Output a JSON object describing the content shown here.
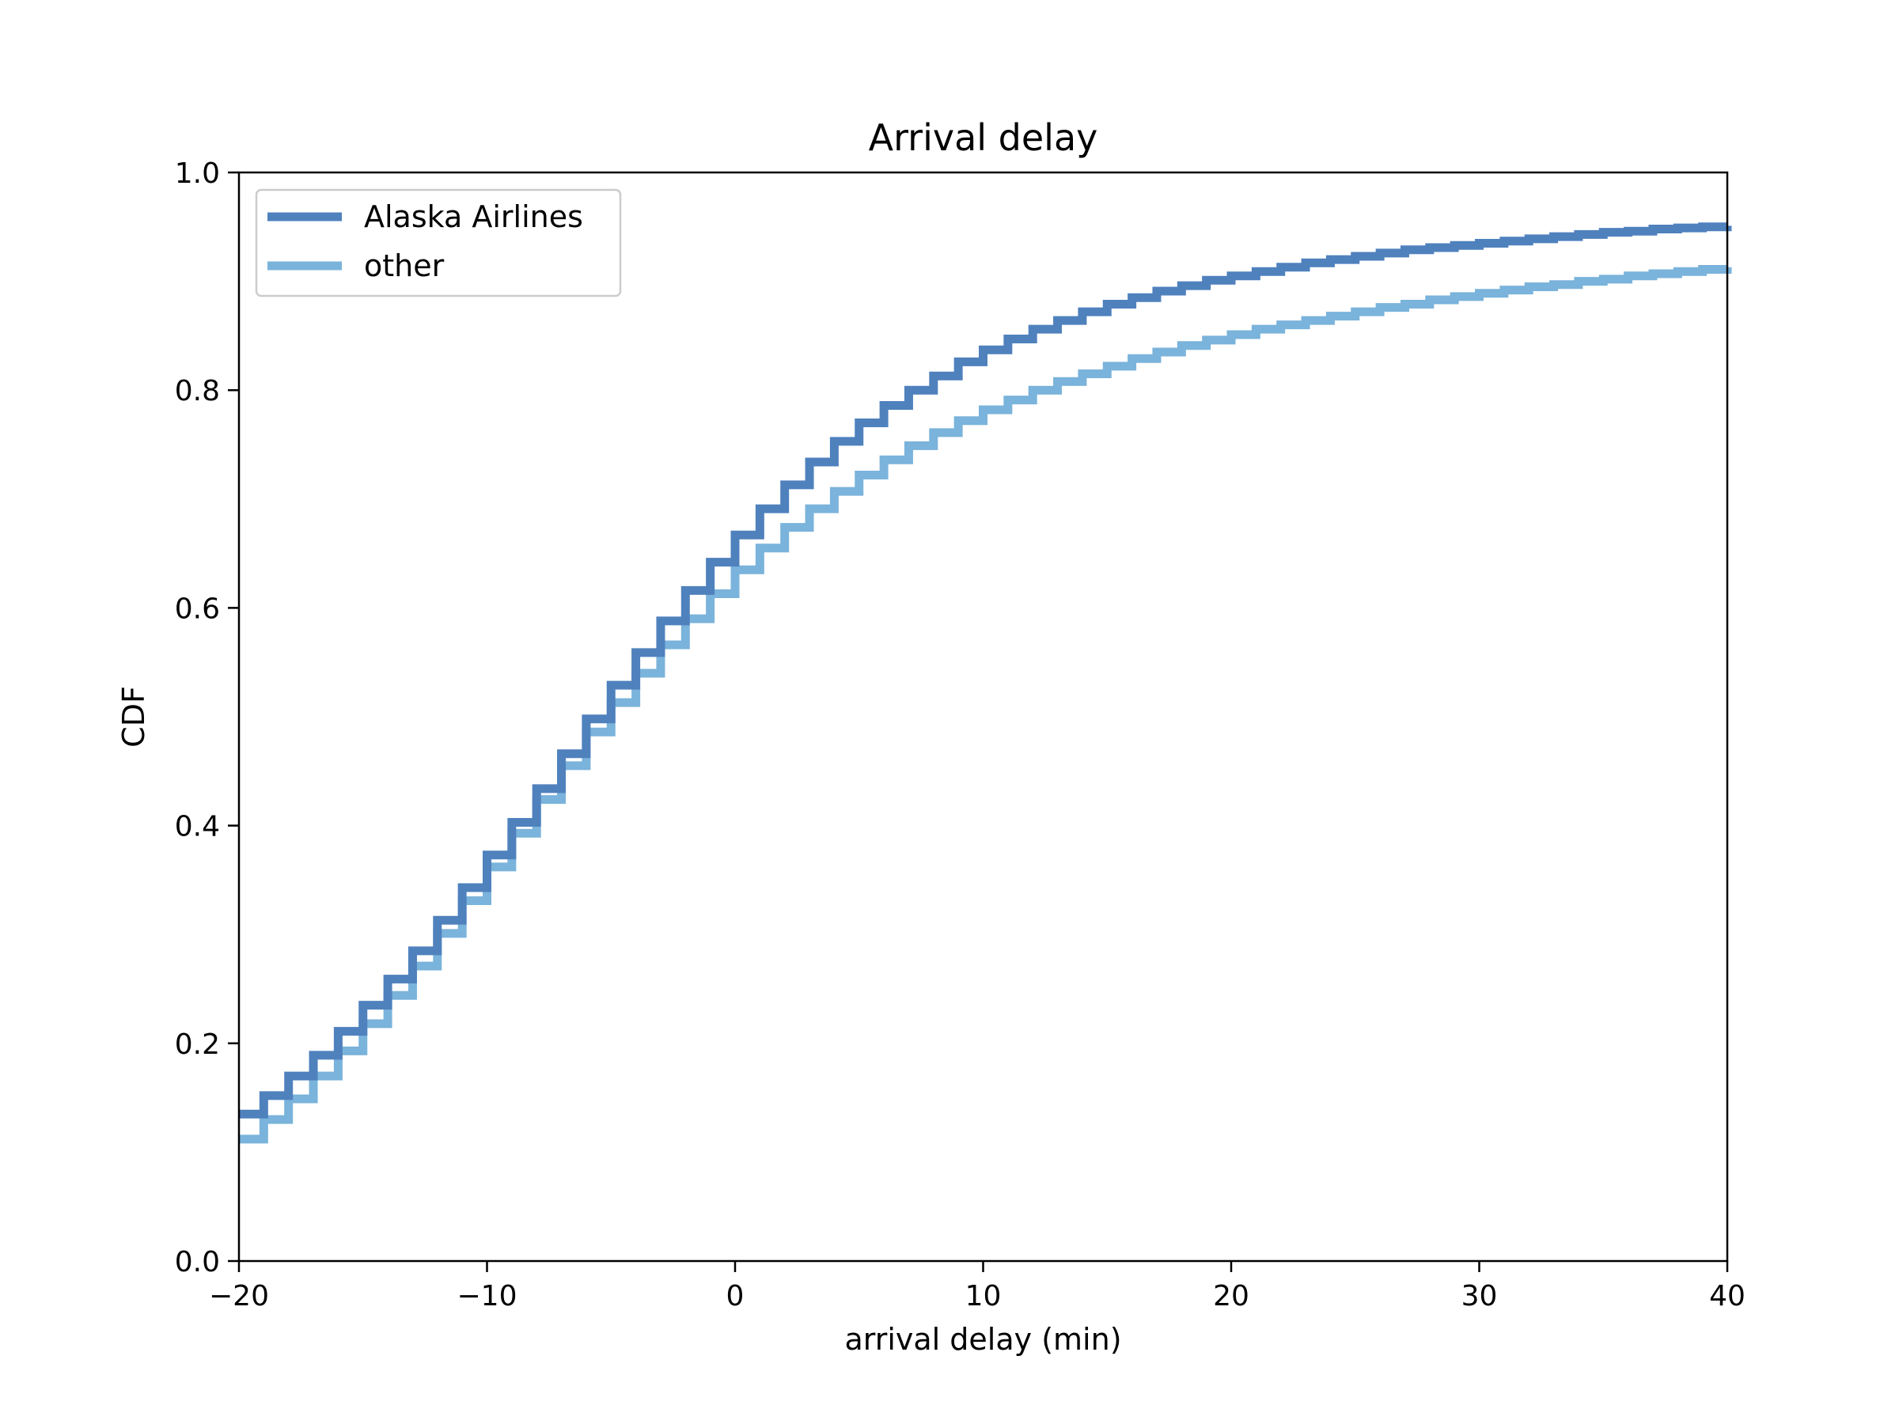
{
  "chart_data": {
    "type": "line",
    "step": true,
    "title": "Arrival delay",
    "xlabel": "arrival delay (min)",
    "ylabel": "CDF",
    "xlim": [
      -20,
      40
    ],
    "ylim": [
      0,
      1.0
    ],
    "xticks": [
      -20,
      -10,
      0,
      10,
      20,
      30,
      40
    ],
    "xtick_labels": [
      "−20",
      "−10",
      "0",
      "10",
      "20",
      "30",
      "40"
    ],
    "yticks": [
      0.0,
      0.2,
      0.4,
      0.6,
      0.8,
      1.0
    ],
    "ytick_labels": [
      "0.0",
      "0.2",
      "0.4",
      "0.6",
      "0.8",
      "1.0"
    ],
    "grid": false,
    "legend_position": "top-left",
    "x": [
      -20,
      -19,
      -18,
      -17,
      -16,
      -15,
      -14,
      -13,
      -12,
      -11,
      -10,
      -9,
      -8,
      -7,
      -6,
      -5,
      -4,
      -3,
      -2,
      -1,
      0,
      1,
      2,
      3,
      4,
      5,
      6,
      7,
      8,
      9,
      10,
      11,
      12,
      13,
      14,
      15,
      16,
      17,
      18,
      19,
      20,
      21,
      22,
      23,
      24,
      25,
      26,
      27,
      28,
      29,
      30,
      31,
      32,
      33,
      34,
      35,
      36,
      37,
      38,
      39,
      40
    ],
    "series": [
      {
        "name": "Alaska Airlines",
        "color": "#4f81bd",
        "values": [
          0.135,
          0.152,
          0.17,
          0.189,
          0.211,
          0.235,
          0.259,
          0.285,
          0.313,
          0.343,
          0.373,
          0.403,
          0.434,
          0.466,
          0.498,
          0.529,
          0.559,
          0.588,
          0.616,
          0.642,
          0.667,
          0.691,
          0.713,
          0.734,
          0.753,
          0.77,
          0.786,
          0.8,
          0.813,
          0.826,
          0.837,
          0.847,
          0.856,
          0.864,
          0.872,
          0.879,
          0.885,
          0.891,
          0.896,
          0.901,
          0.905,
          0.909,
          0.913,
          0.917,
          0.92,
          0.923,
          0.926,
          0.929,
          0.931,
          0.933,
          0.935,
          0.937,
          0.939,
          0.941,
          0.943,
          0.945,
          0.946,
          0.948,
          0.949,
          0.95,
          0.951
        ]
      },
      {
        "name": "other",
        "color": "#7ab3db",
        "values": [
          0.112,
          0.13,
          0.149,
          0.17,
          0.193,
          0.218,
          0.244,
          0.271,
          0.301,
          0.331,
          0.362,
          0.393,
          0.424,
          0.455,
          0.486,
          0.513,
          0.54,
          0.566,
          0.59,
          0.613,
          0.635,
          0.655,
          0.674,
          0.691,
          0.707,
          0.722,
          0.736,
          0.749,
          0.761,
          0.772,
          0.782,
          0.791,
          0.8,
          0.808,
          0.815,
          0.822,
          0.829,
          0.835,
          0.841,
          0.846,
          0.851,
          0.856,
          0.86,
          0.864,
          0.868,
          0.872,
          0.876,
          0.879,
          0.883,
          0.886,
          0.889,
          0.892,
          0.895,
          0.897,
          0.9,
          0.902,
          0.905,
          0.907,
          0.909,
          0.911,
          0.913
        ]
      }
    ]
  }
}
